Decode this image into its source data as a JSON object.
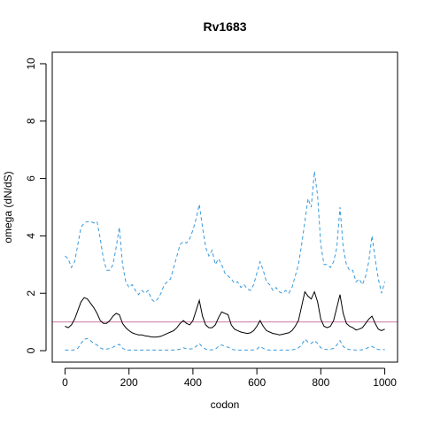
{
  "chart_data": {
    "type": "line",
    "title": "Rv1683",
    "xlabel": "codon",
    "ylabel": "omega (dN/dS)",
    "xlim": [
      -40,
      1040
    ],
    "ylim": [
      -0.4,
      10.4
    ],
    "x_ticks": [
      0,
      200,
      400,
      600,
      800,
      1000
    ],
    "y_ticks": [
      0,
      2,
      4,
      6,
      8,
      10
    ],
    "grid": false,
    "reference_line": {
      "y": 1.0,
      "color": "#CC79A7"
    },
    "series": [
      {
        "role": "upper",
        "style": "dashed",
        "color": "#3A9BDC",
        "x": [
          0,
          10,
          20,
          30,
          40,
          50,
          60,
          70,
          80,
          90,
          100,
          110,
          120,
          130,
          140,
          150,
          160,
          170,
          180,
          190,
          200,
          210,
          220,
          230,
          240,
          250,
          260,
          270,
          280,
          290,
          300,
          310,
          320,
          330,
          340,
          350,
          360,
          370,
          380,
          390,
          400,
          410,
          420,
          430,
          440,
          450,
          460,
          470,
          480,
          490,
          500,
          510,
          520,
          530,
          540,
          550,
          560,
          570,
          580,
          590,
          600,
          610,
          620,
          630,
          640,
          650,
          660,
          670,
          680,
          690,
          700,
          710,
          720,
          730,
          740,
          750,
          760,
          770,
          780,
          790,
          800,
          810,
          820,
          830,
          840,
          850,
          860,
          870,
          880,
          890,
          900,
          910,
          920,
          930,
          940,
          950,
          960,
          970,
          980,
          990,
          1000
        ],
        "values": [
          3.3,
          3.2,
          2.9,
          3.1,
          3.7,
          4.3,
          4.45,
          4.5,
          4.5,
          4.45,
          4.5,
          3.9,
          3.2,
          2.8,
          2.8,
          3.0,
          3.6,
          4.3,
          3.0,
          2.4,
          2.2,
          2.3,
          2.1,
          1.95,
          2.1,
          2.0,
          2.1,
          1.8,
          1.7,
          1.8,
          2.0,
          2.3,
          2.4,
          2.5,
          2.9,
          3.3,
          3.7,
          3.8,
          3.75,
          3.9,
          4.2,
          4.6,
          5.1,
          4.3,
          3.6,
          3.3,
          3.5,
          3.0,
          3.2,
          3.0,
          2.7,
          2.6,
          2.5,
          2.35,
          2.4,
          2.2,
          2.3,
          2.15,
          2.1,
          2.3,
          2.7,
          3.1,
          2.8,
          2.4,
          2.3,
          2.1,
          2.2,
          2.05,
          2.0,
          2.1,
          2.0,
          2.2,
          2.6,
          3.0,
          3.7,
          4.5,
          5.3,
          5.0,
          6.25,
          5.4,
          3.7,
          3.0,
          3.0,
          2.9,
          3.1,
          3.6,
          5.0,
          3.6,
          3.0,
          2.8,
          2.8,
          2.4,
          2.5,
          2.3,
          2.6,
          3.1,
          4.0,
          3.2,
          2.5,
          2.0,
          2.4
        ]
      },
      {
        "role": "mean",
        "style": "solid",
        "color": "#000000",
        "x": [
          0,
          10,
          20,
          30,
          40,
          50,
          60,
          70,
          80,
          90,
          100,
          110,
          120,
          130,
          140,
          150,
          160,
          170,
          180,
          190,
          200,
          210,
          220,
          230,
          240,
          250,
          260,
          270,
          280,
          290,
          300,
          310,
          320,
          330,
          340,
          350,
          360,
          370,
          380,
          390,
          400,
          410,
          420,
          430,
          440,
          450,
          460,
          470,
          480,
          490,
          500,
          510,
          520,
          530,
          540,
          550,
          560,
          570,
          580,
          590,
          600,
          610,
          620,
          630,
          640,
          650,
          660,
          670,
          680,
          690,
          700,
          710,
          720,
          730,
          740,
          750,
          760,
          770,
          780,
          790,
          800,
          810,
          820,
          830,
          840,
          850,
          860,
          870,
          880,
          890,
          900,
          910,
          920,
          930,
          940,
          950,
          960,
          970,
          980,
          990,
          1000
        ],
        "values": [
          0.85,
          0.8,
          0.9,
          1.1,
          1.4,
          1.7,
          1.85,
          1.8,
          1.65,
          1.5,
          1.3,
          1.05,
          0.95,
          0.95,
          1.05,
          1.2,
          1.3,
          1.25,
          0.95,
          0.8,
          0.7,
          0.62,
          0.58,
          0.55,
          0.55,
          0.52,
          0.5,
          0.48,
          0.47,
          0.48,
          0.5,
          0.55,
          0.6,
          0.65,
          0.7,
          0.8,
          0.95,
          1.05,
          0.95,
          0.9,
          1.05,
          1.4,
          1.75,
          1.2,
          0.9,
          0.8,
          0.8,
          0.9,
          1.15,
          1.35,
          1.3,
          1.25,
          0.9,
          0.75,
          0.7,
          0.65,
          0.62,
          0.6,
          0.62,
          0.7,
          0.85,
          1.05,
          0.85,
          0.7,
          0.65,
          0.6,
          0.58,
          0.55,
          0.57,
          0.6,
          0.62,
          0.7,
          0.85,
          1.05,
          1.55,
          2.05,
          1.9,
          1.8,
          2.05,
          1.7,
          1.1,
          0.85,
          0.8,
          0.85,
          1.05,
          1.5,
          1.95,
          1.3,
          0.95,
          0.85,
          0.8,
          0.72,
          0.75,
          0.8,
          0.95,
          1.1,
          1.2,
          0.95,
          0.75,
          0.7,
          0.75
        ]
      },
      {
        "role": "lower",
        "style": "dashed",
        "color": "#3A9BDC",
        "x": [
          0,
          10,
          20,
          30,
          40,
          50,
          60,
          70,
          80,
          90,
          100,
          110,
          120,
          130,
          140,
          150,
          160,
          170,
          180,
          190,
          200,
          210,
          220,
          230,
          240,
          250,
          260,
          270,
          280,
          290,
          300,
          310,
          320,
          330,
          340,
          350,
          360,
          370,
          380,
          390,
          400,
          410,
          420,
          430,
          440,
          450,
          460,
          470,
          480,
          490,
          500,
          510,
          520,
          530,
          540,
          550,
          560,
          570,
          580,
          590,
          600,
          610,
          620,
          630,
          640,
          650,
          660,
          670,
          680,
          690,
          700,
          710,
          720,
          730,
          740,
          750,
          760,
          770,
          780,
          790,
          800,
          810,
          820,
          830,
          840,
          850,
          860,
          870,
          880,
          890,
          900,
          910,
          920,
          930,
          940,
          950,
          960,
          970,
          980,
          990,
          1000
        ],
        "values": [
          0.02,
          0.02,
          0.02,
          0.03,
          0.08,
          0.25,
          0.4,
          0.42,
          0.35,
          0.25,
          0.2,
          0.1,
          0.05,
          0.05,
          0.08,
          0.12,
          0.18,
          0.22,
          0.08,
          0.03,
          0.02,
          0.02,
          0.02,
          0.02,
          0.02,
          0.02,
          0.02,
          0.02,
          0.02,
          0.02,
          0.02,
          0.02,
          0.02,
          0.02,
          0.02,
          0.03,
          0.05,
          0.1,
          0.07,
          0.06,
          0.07,
          0.15,
          0.25,
          0.12,
          0.05,
          0.03,
          0.03,
          0.05,
          0.15,
          0.2,
          0.15,
          0.12,
          0.05,
          0.03,
          0.02,
          0.02,
          0.02,
          0.02,
          0.02,
          0.03,
          0.05,
          0.15,
          0.08,
          0.03,
          0.02,
          0.02,
          0.02,
          0.02,
          0.02,
          0.02,
          0.02,
          0.03,
          0.05,
          0.1,
          0.2,
          0.4,
          0.3,
          0.25,
          0.35,
          0.25,
          0.1,
          0.05,
          0.04,
          0.05,
          0.08,
          0.2,
          0.35,
          0.15,
          0.06,
          0.04,
          0.03,
          0.02,
          0.03,
          0.03,
          0.06,
          0.12,
          0.15,
          0.08,
          0.04,
          0.03,
          0.04
        ]
      }
    ]
  }
}
